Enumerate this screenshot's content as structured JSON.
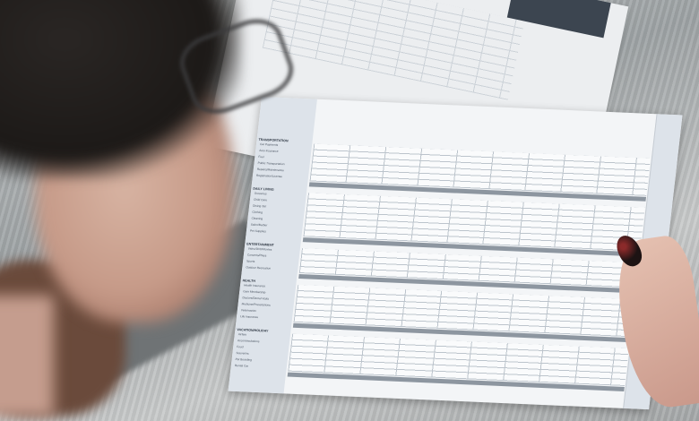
{
  "scene": "Person reviewing a printed household budget spreadsheet on a table",
  "paper": {
    "sections": [
      {
        "title": "TRANSPORTATION",
        "rows": [
          "Car Payments",
          "Auto Insurance",
          "Fuel",
          "Public Transportation",
          "Repairs/Maintenance",
          "Registration/License"
        ]
      },
      {
        "title": "DAILY LIVING",
        "rows": [
          "Groceries",
          "Child Care",
          "Dining Out",
          "Clothing",
          "Cleaning",
          "Salon/Barber",
          "Pet Supplies"
        ]
      },
      {
        "title": "ENTERTAINMENT",
        "rows": [
          "Video/DVD/Movies",
          "Concerts/Plays",
          "Sports",
          "Outdoor Recreation"
        ]
      },
      {
        "title": "HEALTH",
        "rows": [
          "Health Insurance",
          "Gym Membership",
          "Doctors/Dental Visits",
          "Medicine/Prescriptions",
          "Veterinarian",
          "Life Insurance"
        ]
      },
      {
        "title": "VACATION/HOLIDAY",
        "rows": [
          "Airfare",
          "Accommodations",
          "Food",
          "Souvenirs",
          "Pet Boarding",
          "Rental Car"
        ]
      }
    ]
  },
  "colors": {
    "table": "#a5a9ab",
    "paper": "#f3f5f7",
    "sidebar": "#dde3ea",
    "total_bar": "#8d96a0",
    "nail": "#1d1313"
  }
}
